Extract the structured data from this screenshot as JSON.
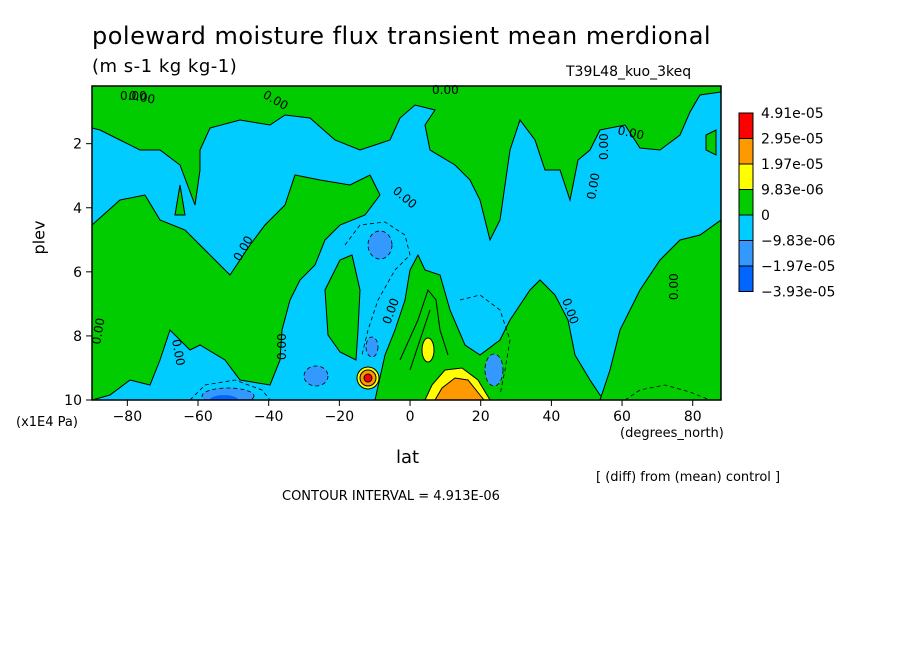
{
  "chart_data": {
    "type": "heatmap",
    "title": "poleward moisture flux transient mean merdional",
    "units": "(m s-1 kg kg-1)",
    "experiment": "T39L48_kuo_3keq",
    "ylabel": "plev",
    "y_units": "(x1E4 Pa)",
    "xlabel": "lat",
    "x_units": "(degrees_north)",
    "footnote": "[ (diff) from (mean) control ]",
    "contour_interval": "CONTOUR INTERVAL = 4.913E-06",
    "xlim": [
      -90,
      88
    ],
    "ylim": [
      10,
      0.2
    ],
    "x_ticks": [
      -80,
      -60,
      -40,
      -20,
      0,
      20,
      40,
      60,
      80
    ],
    "x_tick_labels": [
      "−80",
      "−60",
      "−40",
      "−20",
      "0",
      "20",
      "40",
      "60",
      "80"
    ],
    "y_ticks": [
      2,
      4,
      6,
      8,
      10
    ],
    "y_tick_labels": [
      "2",
      "4",
      "6",
      "8",
      "10"
    ],
    "colorbar": {
      "labels": [
        "4.91e-05",
        "2.95e-05",
        "1.97e-05",
        "9.83e-06",
        "0",
        "−9.83e-06",
        "−1.97e-05",
        "−3.93e-05"
      ],
      "colors": [
        "#ff0000",
        "#ff9900",
        "#ffff00",
        "#00cc00",
        "#00ccff",
        "#3399ff",
        "#0066ff"
      ]
    },
    "contour_labels": [
      "0.00",
      "0.00",
      "0.00",
      "0.00",
      "0.00",
      "0.00",
      "0.00",
      "0.00",
      "0.00",
      "0.00",
      "0.00",
      "0.00",
      "0.00",
      "0.00",
      "0.00"
    ],
    "colors": {
      "positive_small": "#00cc00",
      "negative_small": "#00ccff",
      "negative_mid": "#3399ff",
      "negative_high": "#0066ff",
      "positive_mid": "#ffff00",
      "positive_high": "#ff9900",
      "positive_max": "#ff0000"
    }
  }
}
